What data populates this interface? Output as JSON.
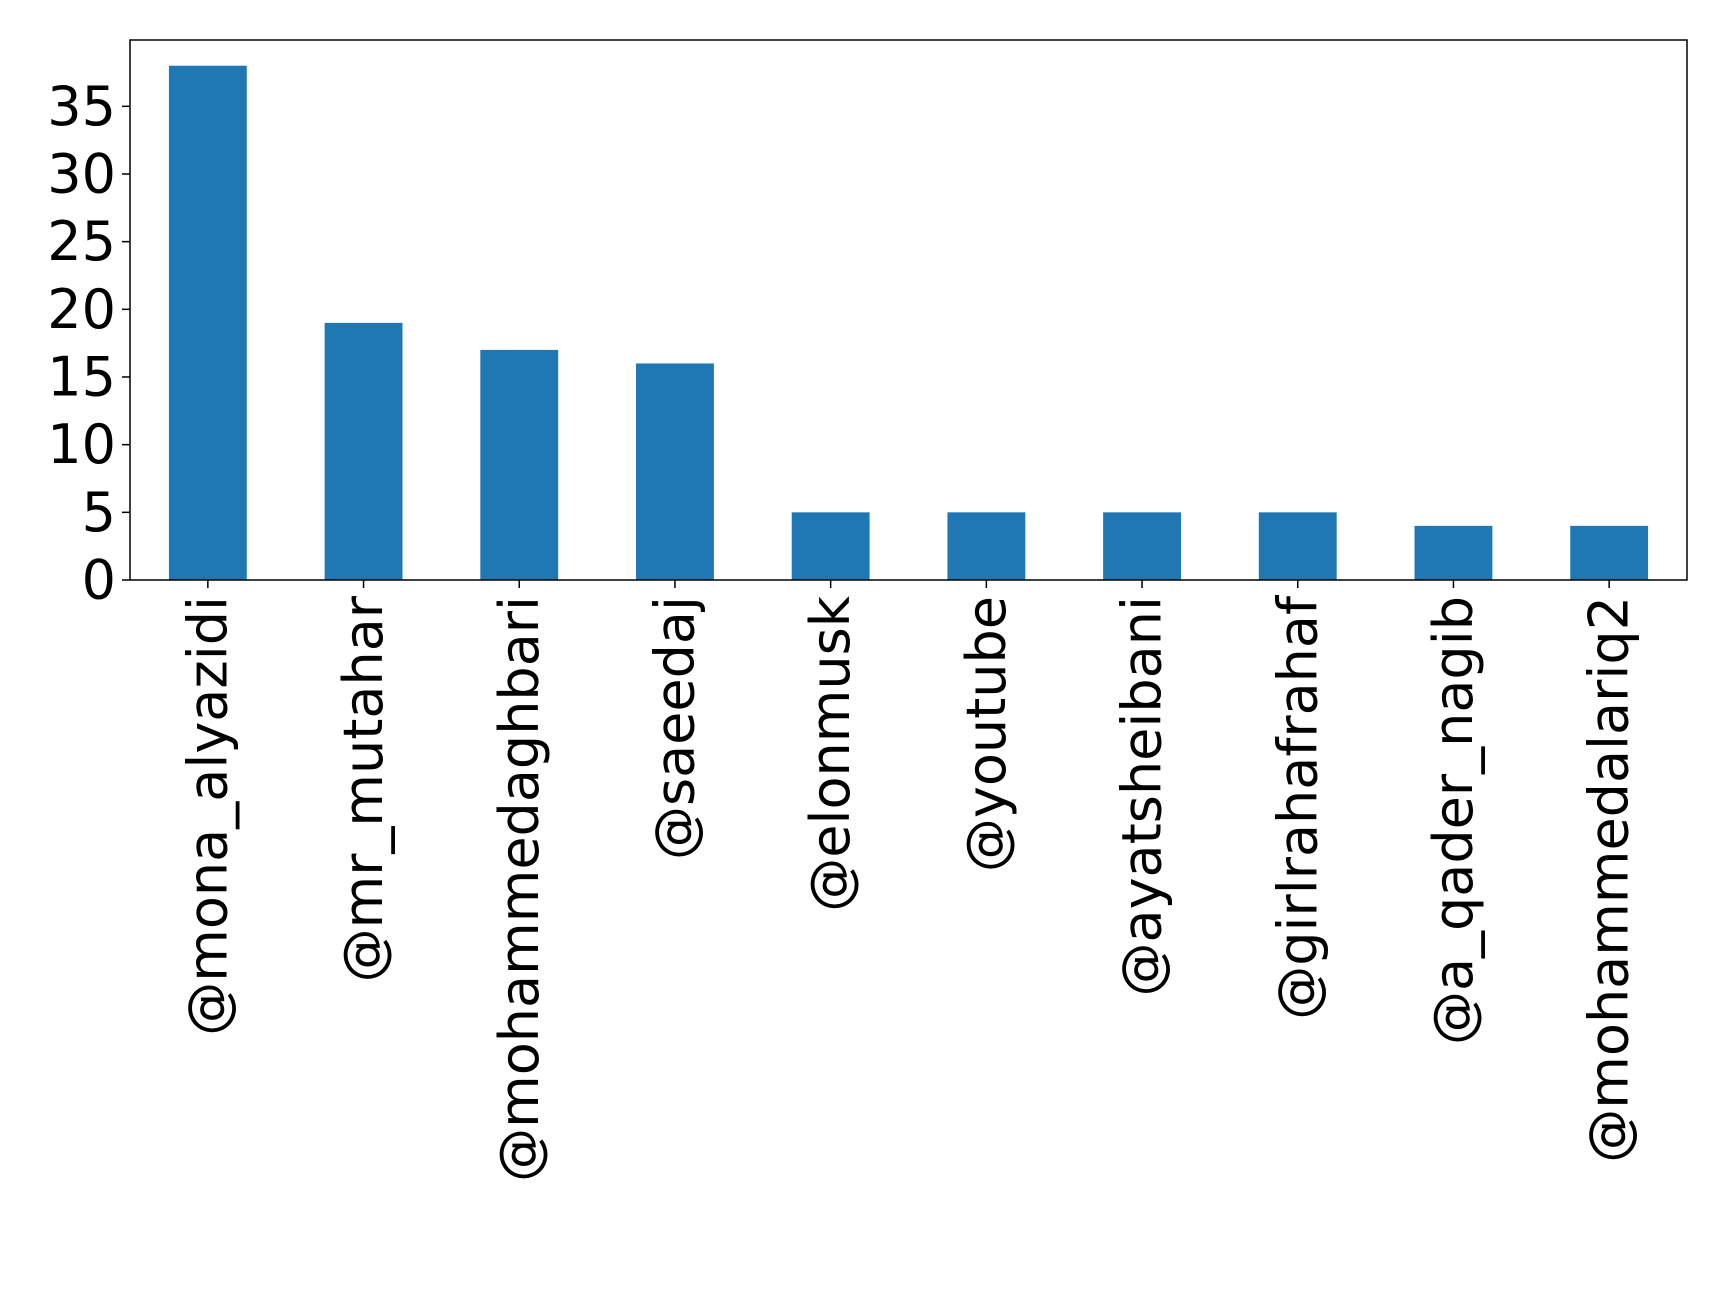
{
  "chart_data": {
    "type": "bar",
    "categories": [
      "@mona_alyazidi",
      "@mr_mutahar",
      "@mohammedaghbari",
      "@saeedaj",
      "@elonmusk",
      "@youtube",
      "@ayatsheibani",
      "@girlrahafrahaf",
      "@a_qader_nagib",
      "@mohammedalariq2"
    ],
    "values": [
      38,
      19,
      17,
      16,
      5,
      5,
      5,
      5,
      4,
      4
    ],
    "yticks": [
      "0",
      "5",
      "10",
      "15",
      "20",
      "25",
      "30",
      "35"
    ],
    "ylim": [
      0,
      39.9
    ],
    "bar_color": "#1f77b4",
    "grid": false,
    "legend": "none",
    "title": "",
    "xlabel": "",
    "ylabel": ""
  }
}
